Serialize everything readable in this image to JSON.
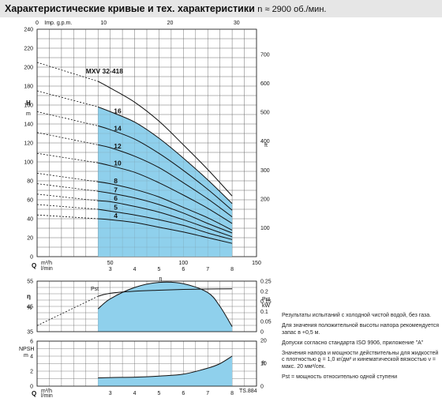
{
  "header": {
    "title": "Характеристические кривые и тех. характеристики",
    "speed": "n ≈ 2900 об./мин."
  },
  "colors": {
    "fill": "#8fd0ec",
    "line": "#111111",
    "grid": "#666666",
    "header_bg": "#e6e6e6"
  },
  "chart_data": [
    {
      "type": "line",
      "name": "head",
      "model_label": "MXV 32-418",
      "ylabel": "H",
      "yunit": "m",
      "ylabel_right": "ft",
      "xlabel_top": "Imp. g.p.m.",
      "xlabel": "Q",
      "xunit_top": "m³/h",
      "xunit_bottom": "l/min",
      "xlim": [
        0,
        9
      ],
      "ylim": [
        0,
        240
      ],
      "xticks": [
        "3",
        "4",
        "5",
        "6",
        "7",
        "8"
      ],
      "xticks_lmin": [
        "50",
        "100",
        "150"
      ],
      "xticks_gpm": [
        "0",
        "10",
        "20",
        "30"
      ],
      "yticks": [
        "0",
        "20",
        "40",
        "60",
        "80",
        "100",
        "120",
        "140",
        "160",
        "180",
        "200",
        "220",
        "240"
      ],
      "yticks_ft": [
        "100",
        "200",
        "300",
        "400",
        "500",
        "600",
        "700"
      ],
      "operating_range": [
        2.5,
        8
      ],
      "series": [
        {
          "name": "16",
          "shutoff": 175,
          "points": [
            [
              2.5,
              158
            ],
            [
              3,
              153
            ],
            [
              4,
              142
            ],
            [
              5,
              125
            ],
            [
              6,
              104
            ],
            [
              7,
              81
            ],
            [
              8,
              56
            ]
          ]
        },
        {
          "name": "14",
          "shutoff": 153,
          "points": [
            [
              2.5,
              138
            ],
            [
              3,
              134
            ],
            [
              4,
              124
            ],
            [
              5,
              109
            ],
            [
              6,
              91
            ],
            [
              7,
              71
            ],
            [
              8,
              49
            ]
          ]
        },
        {
          "name": "12",
          "shutoff": 131,
          "points": [
            [
              2.5,
              118
            ],
            [
              3,
              115
            ],
            [
              4,
              106
            ],
            [
              5,
              94
            ],
            [
              6,
              78
            ],
            [
              7,
              61
            ],
            [
              8,
              42
            ]
          ]
        },
        {
          "name": "10",
          "shutoff": 109,
          "points": [
            [
              2.5,
              99
            ],
            [
              3,
              96
            ],
            [
              4,
              89
            ],
            [
              5,
              78
            ],
            [
              6,
              65
            ],
            [
              7,
              51
            ],
            [
              8,
              35
            ]
          ]
        },
        {
          "name": "8",
          "shutoff": 88,
          "points": [
            [
              2.5,
              79
            ],
            [
              3,
              77
            ],
            [
              4,
              71
            ],
            [
              5,
              63
            ],
            [
              6,
              52
            ],
            [
              7,
              41
            ],
            [
              8,
              28
            ]
          ]
        },
        {
          "name": "7",
          "shutoff": 77,
          "points": [
            [
              2.5,
              69
            ],
            [
              3,
              67
            ],
            [
              4,
              62
            ],
            [
              5,
              55
            ],
            [
              6,
              46
            ],
            [
              7,
              35
            ],
            [
              8,
              25
            ]
          ]
        },
        {
          "name": "6",
          "shutoff": 66,
          "points": [
            [
              2.5,
              59
            ],
            [
              3,
              58
            ],
            [
              4,
              53
            ],
            [
              5,
              47
            ],
            [
              6,
              39
            ],
            [
              7,
              30
            ],
            [
              8,
              21
            ]
          ]
        },
        {
          "name": "5",
          "shutoff": 55,
          "points": [
            [
              2.5,
              50
            ],
            [
              3,
              48
            ],
            [
              4,
              44
            ],
            [
              5,
              39
            ],
            [
              6,
              33
            ],
            [
              7,
              25
            ],
            [
              8,
              18
            ]
          ]
        },
        {
          "name": "4",
          "shutoff": 44,
          "points": [
            [
              2.5,
              40
            ],
            [
              3,
              39
            ],
            [
              4,
              36
            ],
            [
              5,
              31
            ],
            [
              6,
              26
            ],
            [
              7,
              20
            ],
            [
              8,
              14
            ]
          ]
        },
        {
          "name": "",
          "shutoff": 205,
          "points": [
            [
              2.5,
              185
            ],
            [
              3,
              178
            ],
            [
              4,
              163
            ],
            [
              5,
              143
            ],
            [
              6,
              118
            ],
            [
              7,
              92
            ],
            [
              8,
              64
            ]
          ]
        }
      ]
    },
    {
      "type": "line",
      "name": "efficiency-power",
      "ylabel": "η",
      "yunit": "%",
      "ylabel_right": "Pst",
      "yunit_right": "kW",
      "xlim": [
        0,
        9
      ],
      "ylim": [
        35,
        55
      ],
      "yticks": [
        "35",
        "45",
        "55"
      ],
      "yticks_right": [
        "0",
        "0.05",
        "0.1",
        "0.15",
        "0.2",
        "0.25"
      ],
      "series": [
        {
          "name": "η",
          "points": [
            [
              2.5,
              44
            ],
            [
              3,
              48
            ],
            [
              4,
              52.5
            ],
            [
              5,
              54.5
            ],
            [
              6,
              54
            ],
            [
              7,
              50.5
            ],
            [
              7.5,
              45
            ],
            [
              8,
              37
            ]
          ]
        },
        {
          "name": "Pst",
          "axis": "right",
          "points": [
            [
              0,
              0.03
            ],
            [
              2.5,
              0.175
            ],
            [
              3,
              0.19
            ],
            [
              4,
              0.2
            ],
            [
              5,
              0.205
            ],
            [
              6,
              0.209
            ],
            [
              7,
              0.211
            ],
            [
              8,
              0.212
            ]
          ]
        }
      ]
    },
    {
      "type": "line",
      "name": "npsh",
      "ylabel": "NPSH",
      "yunit": "m",
      "ylabel_right": "ft",
      "xlabel": "Q",
      "xunit_top": "m³/h",
      "xunit_bottom": "l/min",
      "xlim": [
        0,
        9
      ],
      "ylim": [
        0,
        6
      ],
      "yticks": [
        "0",
        "2",
        "4",
        "6"
      ],
      "yticks_ft": [
        "0",
        "10",
        "20"
      ],
      "xticks": [
        "3",
        "4",
        "5",
        "6",
        "7",
        "8"
      ],
      "xticks_lmin": [
        "50",
        "100",
        "150"
      ],
      "series": [
        {
          "name": "NPSH",
          "points": [
            [
              2.5,
              1.1
            ],
            [
              3,
              1.15
            ],
            [
              4,
              1.2
            ],
            [
              5,
              1.35
            ],
            [
              6,
              1.6
            ],
            [
              7,
              2.4
            ],
            [
              7.5,
              3
            ],
            [
              8,
              4
            ]
          ]
        }
      ]
    }
  ],
  "notes": [
    "Результаты испытаний с холодной чистой водой, без газа.",
    "Для значения положительной высоты напора рекомендуется запас в +0,5 м.",
    "Допуски согласно стандарта ISO 9906, приложение \"A\"",
    "Значения напора и мощности действительны для жидкостей с плотностью ϱ = 1,0 кг/дм³ и кинематической вязкостью ν = макс. 20 мм²/сек.",
    "Pst = мощность относительно одной ступени"
  ],
  "corner_code": "TS.884"
}
